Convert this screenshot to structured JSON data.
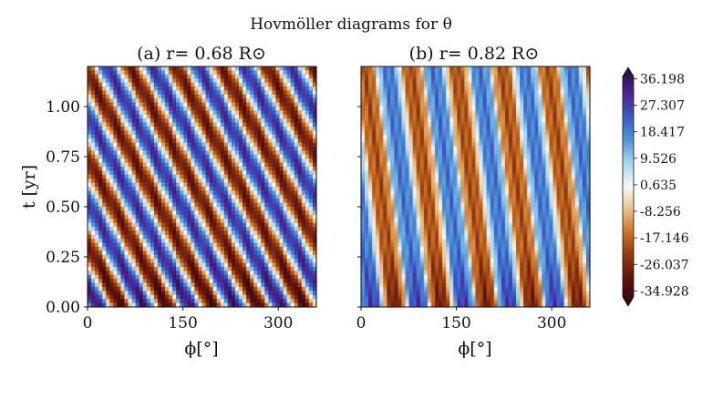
{
  "figure": {
    "suptitle": "Hovmöller diagrams for θ"
  },
  "chart_data": [
    {
      "type": "heatmap",
      "title": "(a) r= 0.68 R⊙",
      "xlabel": "ϕ[°]",
      "ylabel": "t [yr]",
      "xlim": [
        0,
        360
      ],
      "ylim": [
        0,
        1.2
      ],
      "xticks": [
        "0",
        "150",
        "300"
      ],
      "xtick_values": [
        0,
        150,
        300
      ],
      "yticks": [
        "0.00",
        "0.25",
        "0.50",
        "0.75",
        "1.00"
      ],
      "ytick_values": [
        0,
        0.25,
        0.5,
        0.75,
        1.0
      ],
      "pattern": {
        "description": "diagonal stripes descending in phi as t increases",
        "phi_period_deg": 72,
        "phase_drift_deg_per_yr": 170,
        "amplitude": 30,
        "amplitude_near_t0": 36
      }
    },
    {
      "type": "heatmap",
      "title": "(b) r= 0.82 R⊙",
      "xlabel": "ϕ[°]",
      "ylabel": "",
      "xlim": [
        0,
        360
      ],
      "ylim": [
        0,
        1.2
      ],
      "xticks": [
        "0",
        "150",
        "300"
      ],
      "xtick_values": [
        0,
        150,
        300
      ],
      "yticks": [],
      "pattern": {
        "description": "steep stripes tilting slightly; strong negative spots near t=0",
        "phi_period_deg": 72,
        "phase_drift_deg_per_yr": 40,
        "amplitude": 25,
        "amplitude_near_t0": 36
      }
    }
  ],
  "colorbar": {
    "min": -40,
    "max": 40,
    "ticks": [
      "36.198",
      "27.307",
      "18.417",
      "9.526",
      "0.635",
      "-8.256",
      "-17.146",
      "-26.037",
      "-34.928"
    ],
    "tick_values": [
      36.198,
      27.307,
      18.417,
      9.526,
      0.635,
      -8.256,
      -17.146,
      -26.037,
      -34.928
    ],
    "colormap": [
      "#2a0b36",
      "#4b1f88",
      "#3a55c4",
      "#4f93d5",
      "#a9d6ef",
      "#f7f7f7",
      "#e9bf85",
      "#c66c21",
      "#8a3310",
      "#5a0f0f",
      "#2e0610"
    ]
  }
}
